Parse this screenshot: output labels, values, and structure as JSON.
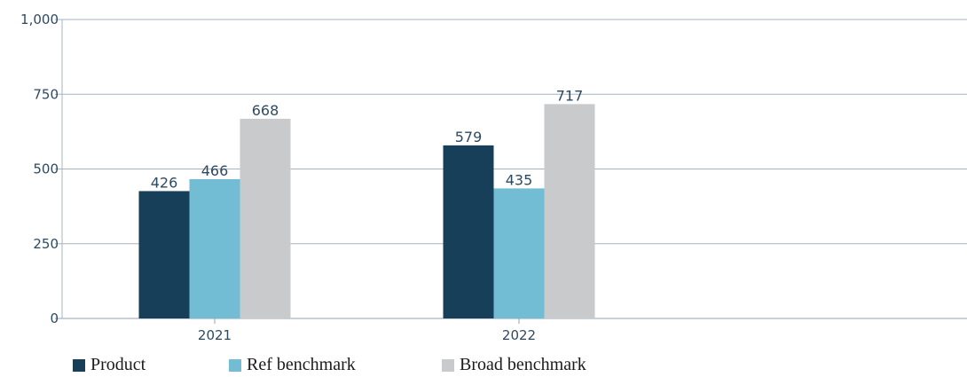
{
  "chart_data": {
    "type": "bar",
    "categories": [
      "2021",
      "2022"
    ],
    "series": [
      {
        "name": "Product",
        "values": [
          426,
          579
        ],
        "color": "#173f5a"
      },
      {
        "name": "Ref benchmark",
        "values": [
          466,
          435
        ],
        "color": "#72bcd4"
      },
      {
        "name": "Broad benchmark",
        "values": [
          668,
          717
        ],
        "color": "#c8cacb"
      }
    ],
    "ylim": [
      0,
      1000
    ],
    "yticks": [
      0,
      250,
      500,
      750,
      1000
    ],
    "ytick_labels": [
      "0",
      "250",
      "500",
      "750",
      "1,000"
    ],
    "grid": true,
    "legend_position": "bottom-left",
    "title": "",
    "xlabel": "",
    "ylabel": ""
  }
}
